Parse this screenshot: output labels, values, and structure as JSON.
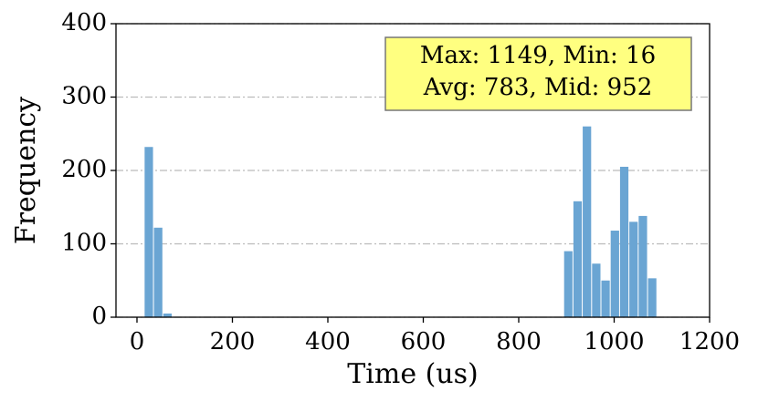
{
  "chart_data": {
    "type": "histogram",
    "xlabel": "Time (us)",
    "ylabel": "Frequency",
    "annotation": [
      "Max: 1149, Min: 16",
      "Avg: 783, Mid: 952"
    ],
    "color": "#6aa5d3",
    "bins": [
      16,
      35.5,
      55.1,
      74.6,
      94.1,
      113.7,
      133.2,
      152.7,
      172.3,
      191.8,
      211.3,
      230.9,
      250.4,
      270.0,
      289.5,
      309.0,
      328.6,
      348.1,
      367.6,
      387.2,
      406.7,
      426.2,
      445.8,
      465.3,
      484.8,
      504.4,
      523.9,
      543.4,
      563.0,
      582.5,
      602.0,
      621.6,
      641.1,
      660.6,
      680.2,
      699.7,
      719.2,
      738.8,
      758.3,
      777.8,
      797.4,
      816.9,
      836.4,
      856.0,
      875.5,
      895.1,
      914.6,
      934.1,
      953.7,
      973.2,
      992.7,
      1012.3,
      1031.8,
      1051.3,
      1070.9,
      1090.4,
      1109.9,
      1129.5,
      1149
    ],
    "values": [
      232,
      122,
      5,
      0,
      0,
      0,
      0,
      0,
      0,
      0,
      0,
      0,
      0,
      0,
      0,
      0,
      0,
      0,
      0,
      0,
      0,
      0,
      0,
      0,
      0,
      0,
      0,
      0,
      0,
      0,
      0,
      0,
      0,
      0,
      0,
      0,
      0,
      0,
      0,
      0,
      0,
      0,
      0,
      0,
      0,
      90,
      158,
      260,
      73,
      50,
      118,
      205,
      130,
      138,
      53,
      0,
      0,
      0
    ],
    "xlim": [
      -44,
      1200
    ],
    "xticks": [
      0,
      200,
      400,
      600,
      800,
      1000,
      1200
    ],
    "ylim": [
      0,
      400
    ],
    "yticks": [
      0,
      100,
      200,
      300,
      400
    ],
    "grid": true
  }
}
